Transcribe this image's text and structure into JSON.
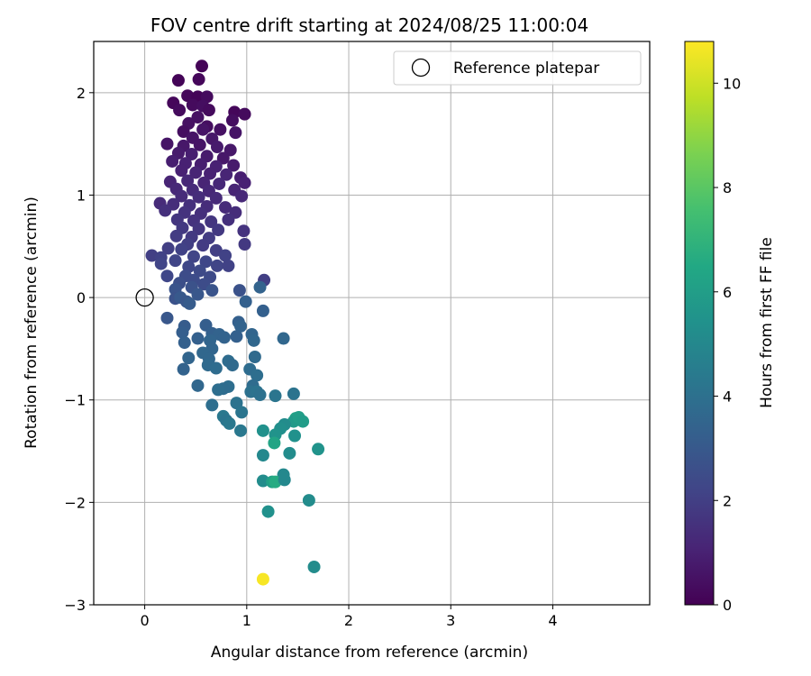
{
  "chart_data": {
    "type": "scatter",
    "title": "FOV centre drift starting at 2024/08/25 11:00:04",
    "xlabel": "Angular distance from reference (arcmin)",
    "ylabel": "Rotation from reference (arcmin)",
    "xlim": [
      -0.5,
      4.95
    ],
    "ylim": [
      -3.0,
      2.5
    ],
    "xticks": [
      0,
      1,
      2,
      3,
      4
    ],
    "yticks": [
      -3,
      -2,
      -1,
      0,
      1,
      2
    ],
    "grid": true,
    "legend": {
      "position": "top-right",
      "entries": [
        "Reference platepar"
      ]
    },
    "reference_point": {
      "x": 0,
      "y": 0,
      "label": "Reference platepar"
    },
    "colorbar": {
      "label": "Hours from first FF file",
      "range": [
        0,
        10.8
      ],
      "ticks": [
        0,
        2,
        4,
        6,
        8,
        10
      ],
      "colormap": "viridis"
    },
    "series": [
      {
        "points": [
          {
            "x": 0.56,
            "y": 2.26,
            "c": 0.1
          },
          {
            "x": 0.33,
            "y": 2.12,
            "c": 0.1
          },
          {
            "x": 0.53,
            "y": 2.13,
            "c": 0.2
          },
          {
            "x": 0.42,
            "y": 1.97,
            "c": 0.2
          },
          {
            "x": 0.52,
            "y": 1.96,
            "c": 0.1
          },
          {
            "x": 0.61,
            "y": 1.96,
            "c": 0.3
          },
          {
            "x": 0.28,
            "y": 1.9,
            "c": 0.2
          },
          {
            "x": 0.47,
            "y": 1.88,
            "c": 0.3
          },
          {
            "x": 0.57,
            "y": 1.87,
            "c": 0.4
          },
          {
            "x": 0.34,
            "y": 1.83,
            "c": 0.3
          },
          {
            "x": 0.63,
            "y": 1.83,
            "c": 0.3
          },
          {
            "x": 0.88,
            "y": 1.81,
            "c": 0.2
          },
          {
            "x": 0.98,
            "y": 1.79,
            "c": 0.3
          },
          {
            "x": 0.52,
            "y": 1.76,
            "c": 0.5
          },
          {
            "x": 0.86,
            "y": 1.73,
            "c": 0.4
          },
          {
            "x": 0.43,
            "y": 1.7,
            "c": 0.5
          },
          {
            "x": 0.61,
            "y": 1.67,
            "c": 0.4
          },
          {
            "x": 0.38,
            "y": 1.62,
            "c": 0.4
          },
          {
            "x": 0.57,
            "y": 1.64,
            "c": 0.6
          },
          {
            "x": 0.74,
            "y": 1.64,
            "c": 0.5
          },
          {
            "x": 0.89,
            "y": 1.61,
            "c": 0.6
          },
          {
            "x": 0.47,
            "y": 1.56,
            "c": 0.6
          },
          {
            "x": 0.66,
            "y": 1.55,
            "c": 0.7
          },
          {
            "x": 0.22,
            "y": 1.5,
            "c": 0.6
          },
          {
            "x": 0.38,
            "y": 1.48,
            "c": 0.7
          },
          {
            "x": 0.54,
            "y": 1.49,
            "c": 0.6
          },
          {
            "x": 0.71,
            "y": 1.47,
            "c": 0.8
          },
          {
            "x": 0.84,
            "y": 1.44,
            "c": 0.7
          },
          {
            "x": 0.33,
            "y": 1.41,
            "c": 0.8
          },
          {
            "x": 0.46,
            "y": 1.4,
            "c": 0.9
          },
          {
            "x": 0.61,
            "y": 1.38,
            "c": 0.8
          },
          {
            "x": 0.77,
            "y": 1.36,
            "c": 0.7
          },
          {
            "x": 0.27,
            "y": 1.33,
            "c": 0.9
          },
          {
            "x": 0.4,
            "y": 1.31,
            "c": 1.0
          },
          {
            "x": 0.55,
            "y": 1.3,
            "c": 0.9
          },
          {
            "x": 0.7,
            "y": 1.28,
            "c": 1.0
          },
          {
            "x": 0.87,
            "y": 1.29,
            "c": 0.8
          },
          {
            "x": 0.36,
            "y": 1.24,
            "c": 1.0
          },
          {
            "x": 0.5,
            "y": 1.22,
            "c": 1.1
          },
          {
            "x": 0.64,
            "y": 1.21,
            "c": 1.0
          },
          {
            "x": 0.8,
            "y": 1.2,
            "c": 1.1
          },
          {
            "x": 0.94,
            "y": 1.17,
            "c": 0.9
          },
          {
            "x": 0.25,
            "y": 1.13,
            "c": 1.1
          },
          {
            "x": 0.42,
            "y": 1.14,
            "c": 1.2
          },
          {
            "x": 0.58,
            "y": 1.12,
            "c": 1.1
          },
          {
            "x": 0.73,
            "y": 1.11,
            "c": 1.2
          },
          {
            "x": 0.98,
            "y": 1.12,
            "c": 1.0
          },
          {
            "x": 0.31,
            "y": 1.06,
            "c": 1.2
          },
          {
            "x": 0.47,
            "y": 1.05,
            "c": 1.3
          },
          {
            "x": 0.63,
            "y": 1.04,
            "c": 1.2
          },
          {
            "x": 0.88,
            "y": 1.05,
            "c": 1.1
          },
          {
            "x": 0.36,
            "y": 0.99,
            "c": 1.3
          },
          {
            "x": 0.53,
            "y": 0.98,
            "c": 1.4
          },
          {
            "x": 0.7,
            "y": 0.97,
            "c": 1.3
          },
          {
            "x": 0.95,
            "y": 0.99,
            "c": 1.2
          },
          {
            "x": 0.15,
            "y": 0.92,
            "c": 1.3
          },
          {
            "x": 0.28,
            "y": 0.91,
            "c": 1.4
          },
          {
            "x": 0.44,
            "y": 0.9,
            "c": 1.5
          },
          {
            "x": 0.61,
            "y": 0.89,
            "c": 1.4
          },
          {
            "x": 0.79,
            "y": 0.88,
            "c": 1.3
          },
          {
            "x": 0.2,
            "y": 0.85,
            "c": 1.5
          },
          {
            "x": 0.39,
            "y": 0.83,
            "c": 1.6
          },
          {
            "x": 0.55,
            "y": 0.82,
            "c": 1.5
          },
          {
            "x": 0.89,
            "y": 0.83,
            "c": 1.4
          },
          {
            "x": 0.32,
            "y": 0.76,
            "c": 1.7
          },
          {
            "x": 0.48,
            "y": 0.75,
            "c": 1.6
          },
          {
            "x": 0.65,
            "y": 0.74,
            "c": 1.7
          },
          {
            "x": 0.82,
            "y": 0.76,
            "c": 1.5
          },
          {
            "x": 0.37,
            "y": 0.68,
            "c": 1.8
          },
          {
            "x": 0.53,
            "y": 0.67,
            "c": 1.7
          },
          {
            "x": 0.72,
            "y": 0.66,
            "c": 1.8
          },
          {
            "x": 0.97,
            "y": 0.65,
            "c": 1.6
          },
          {
            "x": 0.31,
            "y": 0.6,
            "c": 1.9
          },
          {
            "x": 0.46,
            "y": 0.59,
            "c": 1.8
          },
          {
            "x": 0.63,
            "y": 0.58,
            "c": 1.9
          },
          {
            "x": 0.42,
            "y": 0.52,
            "c": 2.0
          },
          {
            "x": 0.57,
            "y": 0.51,
            "c": 1.9
          },
          {
            "x": 0.98,
            "y": 0.52,
            "c": 1.8
          },
          {
            "x": 0.23,
            "y": 0.48,
            "c": 2.0
          },
          {
            "x": 0.36,
            "y": 0.47,
            "c": 2.1
          },
          {
            "x": 0.7,
            "y": 0.46,
            "c": 2.0
          },
          {
            "x": 0.07,
            "y": 0.41,
            "c": 2.0
          },
          {
            "x": 0.16,
            "y": 0.39,
            "c": 2.1
          },
          {
            "x": 0.48,
            "y": 0.4,
            "c": 2.2
          },
          {
            "x": 0.79,
            "y": 0.41,
            "c": 2.1
          },
          {
            "x": 0.3,
            "y": 0.36,
            "c": 2.2
          },
          {
            "x": 0.6,
            "y": 0.35,
            "c": 2.3
          },
          {
            "x": 0.16,
            "y": 0.33,
            "c": 2.2
          },
          {
            "x": 0.43,
            "y": 0.3,
            "c": 2.3
          },
          {
            "x": 0.71,
            "y": 0.31,
            "c": 2.2
          },
          {
            "x": 0.82,
            "y": 0.31,
            "c": 2.1
          },
          {
            "x": 0.54,
            "y": 0.26,
            "c": 2.4
          },
          {
            "x": 0.22,
            "y": 0.21,
            "c": 2.3
          },
          {
            "x": 0.4,
            "y": 0.21,
            "c": 2.5
          },
          {
            "x": 0.64,
            "y": 0.2,
            "c": 2.4
          },
          {
            "x": 0.48,
            "y": 0.17,
            "c": 2.5
          },
          {
            "x": 1.17,
            "y": 0.17,
            "c": 2.0
          },
          {
            "x": 0.34,
            "y": 0.14,
            "c": 2.6
          },
          {
            "x": 0.58,
            "y": 0.13,
            "c": 2.5
          },
          {
            "x": 0.46,
            "y": 0.1,
            "c": 2.7
          },
          {
            "x": 0.3,
            "y": 0.08,
            "c": 2.8
          },
          {
            "x": 0.66,
            "y": 0.07,
            "c": 2.8
          },
          {
            "x": 0.93,
            "y": 0.07,
            "c": 2.7
          },
          {
            "x": 1.13,
            "y": 0.1,
            "c": 3.4
          },
          {
            "x": 0.52,
            "y": 0.03,
            "c": 2.9
          },
          {
            "x": 0.3,
            "y": -0.01,
            "c": 2.7
          },
          {
            "x": 0.35,
            "y": 0.0,
            "c": 3.0
          },
          {
            "x": 0.41,
            "y": -0.04,
            "c": 2.9
          },
          {
            "x": 0.44,
            "y": -0.06,
            "c": 3.1
          },
          {
            "x": 0.99,
            "y": -0.04,
            "c": 3.3
          },
          {
            "x": 0.22,
            "y": -0.2,
            "c": 2.9
          },
          {
            "x": 1.16,
            "y": -0.13,
            "c": 3.3
          },
          {
            "x": 0.39,
            "y": -0.28,
            "c": 3.1
          },
          {
            "x": 0.6,
            "y": -0.27,
            "c": 3.2
          },
          {
            "x": 0.92,
            "y": -0.24,
            "c": 3.3
          },
          {
            "x": 0.94,
            "y": -0.28,
            "c": 3.4
          },
          {
            "x": 0.37,
            "y": -0.34,
            "c": 3.2
          },
          {
            "x": 0.66,
            "y": -0.35,
            "c": 3.3
          },
          {
            "x": 0.73,
            "y": -0.36,
            "c": 3.4
          },
          {
            "x": 1.05,
            "y": -0.36,
            "c": 3.5
          },
          {
            "x": 0.52,
            "y": -0.4,
            "c": 3.3
          },
          {
            "x": 0.64,
            "y": -0.42,
            "c": 3.5
          },
          {
            "x": 0.78,
            "y": -0.39,
            "c": 3.4
          },
          {
            "x": 0.9,
            "y": -0.38,
            "c": 3.3
          },
          {
            "x": 1.07,
            "y": -0.42,
            "c": 3.6
          },
          {
            "x": 1.36,
            "y": -0.4,
            "c": 3.6
          },
          {
            "x": 0.39,
            "y": -0.44,
            "c": 3.3
          },
          {
            "x": 0.66,
            "y": -0.5,
            "c": 3.5
          },
          {
            "x": 0.57,
            "y": -0.54,
            "c": 3.6
          },
          {
            "x": 0.43,
            "y": -0.59,
            "c": 3.5
          },
          {
            "x": 1.08,
            "y": -0.58,
            "c": 3.7
          },
          {
            "x": 0.63,
            "y": -0.6,
            "c": 3.6
          },
          {
            "x": 0.82,
            "y": -0.62,
            "c": 3.8
          },
          {
            "x": 0.86,
            "y": -0.66,
            "c": 3.7
          },
          {
            "x": 0.62,
            "y": -0.66,
            "c": 3.7
          },
          {
            "x": 0.7,
            "y": -0.69,
            "c": 3.8
          },
          {
            "x": 0.38,
            "y": -0.7,
            "c": 3.4
          },
          {
            "x": 1.03,
            "y": -0.7,
            "c": 3.8
          },
          {
            "x": 1.1,
            "y": -0.76,
            "c": 3.9
          },
          {
            "x": 0.52,
            "y": -0.86,
            "c": 3.6
          },
          {
            "x": 0.82,
            "y": -0.87,
            "c": 3.9
          },
          {
            "x": 1.06,
            "y": -0.86,
            "c": 3.8
          },
          {
            "x": 0.77,
            "y": -0.89,
            "c": 3.8
          },
          {
            "x": 0.72,
            "y": -0.9,
            "c": 3.9
          },
          {
            "x": 1.04,
            "y": -0.92,
            "c": 4.0
          },
          {
            "x": 1.1,
            "y": -0.92,
            "c": 4.1
          },
          {
            "x": 1.13,
            "y": -0.95,
            "c": 4.0
          },
          {
            "x": 1.28,
            "y": -0.96,
            "c": 4.2
          },
          {
            "x": 1.46,
            "y": -0.94,
            "c": 4.1
          },
          {
            "x": 0.9,
            "y": -1.03,
            "c": 4.1
          },
          {
            "x": 0.66,
            "y": -1.05,
            "c": 3.9
          },
          {
            "x": 0.95,
            "y": -1.12,
            "c": 4.2
          },
          {
            "x": 0.77,
            "y": -1.16,
            "c": 4.3
          },
          {
            "x": 0.8,
            "y": -1.2,
            "c": 4.2
          },
          {
            "x": 0.83,
            "y": -1.23,
            "c": 4.3
          },
          {
            "x": 1.48,
            "y": -1.18,
            "c": 6.2
          },
          {
            "x": 1.46,
            "y": -1.21,
            "c": 5.8
          },
          {
            "x": 1.51,
            "y": -1.17,
            "c": 6.0
          },
          {
            "x": 1.55,
            "y": -1.21,
            "c": 5.9
          },
          {
            "x": 1.37,
            "y": -1.24,
            "c": 5.2
          },
          {
            "x": 0.94,
            "y": -1.3,
            "c": 4.3
          },
          {
            "x": 1.16,
            "y": -1.3,
            "c": 5.4
          },
          {
            "x": 1.33,
            "y": -1.28,
            "c": 5.3
          },
          {
            "x": 1.28,
            "y": -1.34,
            "c": 5.5
          },
          {
            "x": 1.47,
            "y": -1.35,
            "c": 5.4
          },
          {
            "x": 1.27,
            "y": -1.42,
            "c": 6.3
          },
          {
            "x": 1.7,
            "y": -1.48,
            "c": 5.5
          },
          {
            "x": 1.42,
            "y": -1.52,
            "c": 5.2
          },
          {
            "x": 1.16,
            "y": -1.54,
            "c": 5.0
          },
          {
            "x": 1.36,
            "y": -1.73,
            "c": 5.0
          },
          {
            "x": 1.16,
            "y": -1.79,
            "c": 5.2
          },
          {
            "x": 1.25,
            "y": -1.8,
            "c": 6.1
          },
          {
            "x": 1.28,
            "y": -1.8,
            "c": 6.6
          },
          {
            "x": 1.37,
            "y": -1.78,
            "c": 5.0
          },
          {
            "x": 1.61,
            "y": -1.98,
            "c": 5.2
          },
          {
            "x": 1.21,
            "y": -2.09,
            "c": 5.4
          },
          {
            "x": 1.66,
            "y": -2.63,
            "c": 5.2
          },
          {
            "x": 1.16,
            "y": -2.75,
            "c": 10.7
          }
        ]
      }
    ]
  }
}
